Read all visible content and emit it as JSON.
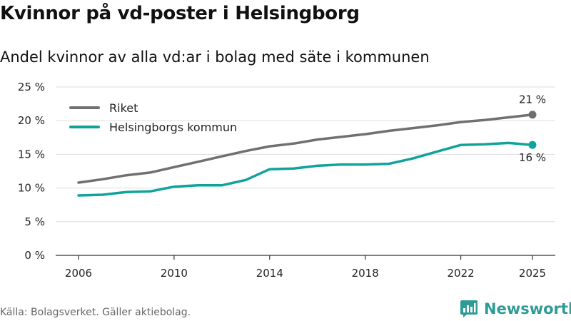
{
  "chart_data": {
    "type": "line",
    "title": "Kvinnor på vd-poster i Helsingborg",
    "subtitle": "Andel kvinnor av alla vd:ar i bolag med säte i kommunen",
    "x": [
      2006,
      2007,
      2008,
      2009,
      2010,
      2011,
      2012,
      2013,
      2014,
      2015,
      2016,
      2017,
      2018,
      2019,
      2020,
      2021,
      2022,
      2023,
      2024,
      2025
    ],
    "series": [
      {
        "name": "Riket",
        "color": "#707070",
        "values": [
          10.8,
          11.3,
          11.9,
          12.3,
          13.1,
          13.9,
          14.7,
          15.5,
          16.2,
          16.6,
          17.2,
          17.6,
          18.0,
          18.5,
          18.9,
          19.3,
          19.8,
          20.1,
          20.5,
          20.9
        ],
        "end_label": "21 %"
      },
      {
        "name": "Helsingborgs kommun",
        "color": "#10a39a",
        "values": [
          8.9,
          9.0,
          9.4,
          9.5,
          10.2,
          10.4,
          10.4,
          11.2,
          12.8,
          12.9,
          13.3,
          13.5,
          13.5,
          13.6,
          14.4,
          15.4,
          16.4,
          16.5,
          16.7,
          16.4
        ],
        "end_label": "16 %"
      }
    ],
    "xticks": [
      2006,
      2010,
      2014,
      2018,
      2022,
      2025
    ],
    "xtick_labels": [
      "2006",
      "2010",
      "2014",
      "2018",
      "2022",
      "2025"
    ],
    "yticks": [
      0,
      5,
      10,
      15,
      20,
      25
    ],
    "ytick_labels": [
      "0 %",
      "5 %",
      "10 %",
      "15 %",
      "20 %",
      "25 %"
    ],
    "ylim": [
      0,
      25
    ],
    "xlim": [
      2006,
      2025
    ],
    "xlabel": "",
    "ylabel": "",
    "grid": true,
    "legend_position": "top-left"
  },
  "footer": {
    "source": "Källa: Bolagsverket. Gäller aktiebolag.",
    "brand": "Newsworthy"
  },
  "colors": {
    "grid": "#dddddd",
    "axis": "#333333",
    "brand": "#2e9b94"
  }
}
